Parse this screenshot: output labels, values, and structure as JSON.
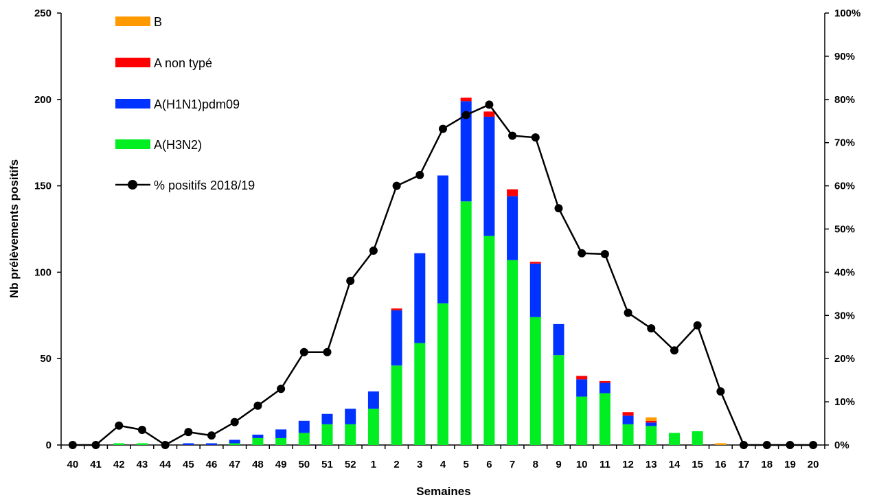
{
  "chart_data": {
    "type": "bar",
    "stacked": true,
    "categories": [
      "40",
      "41",
      "42",
      "43",
      "44",
      "45",
      "46",
      "47",
      "48",
      "49",
      "50",
      "51",
      "52",
      "1",
      "2",
      "3",
      "4",
      "5",
      "6",
      "7",
      "8",
      "9",
      "10",
      "11",
      "12",
      "13",
      "14",
      "15",
      "16",
      "17",
      "18",
      "19",
      "20"
    ],
    "xlabel": "Semaines",
    "ylabel": "Nb prélèvements positifs",
    "ylim": [
      0,
      250
    ],
    "yticks": [
      "0",
      "50",
      "100",
      "150",
      "200",
      "250"
    ],
    "y2lim": [
      0,
      100
    ],
    "y2ticks": [
      "0%",
      "10%",
      "20%",
      "30%",
      "40%",
      "50%",
      "60%",
      "70%",
      "80%",
      "90%",
      "100%"
    ],
    "grid": false,
    "legend_position": "top-left",
    "series": [
      {
        "name": "A(H3N2)",
        "color": "#00ee22",
        "values": [
          0,
          0,
          1,
          1,
          0,
          0,
          0,
          1,
          4,
          4,
          7,
          12,
          12,
          21,
          46,
          59,
          82,
          141,
          121,
          107,
          74,
          52,
          28,
          30,
          12,
          11,
          7,
          8,
          0,
          0,
          0,
          0,
          0
        ]
      },
      {
        "name": "A(H1N1)pdm09",
        "color": "#0033ff",
        "values": [
          0,
          0,
          0,
          0,
          0,
          1,
          1,
          2,
          2,
          5,
          7,
          6,
          9,
          10,
          32,
          52,
          74,
          58,
          69,
          37,
          31,
          18,
          10,
          6,
          5,
          2,
          0,
          0,
          0,
          0,
          0,
          0,
          0
        ]
      },
      {
        "name": "A non typé",
        "color": "#ff0000",
        "values": [
          0,
          0,
          0,
          0,
          0,
          0,
          0,
          0,
          0,
          0,
          0,
          0,
          0,
          0,
          1,
          0,
          0,
          2,
          3,
          4,
          1,
          0,
          2,
          1,
          2,
          1,
          0,
          0,
          0,
          0,
          0,
          0,
          0
        ]
      },
      {
        "name": "B",
        "color": "#ff9900",
        "values": [
          0,
          0,
          0,
          0,
          0,
          0,
          0,
          0,
          0,
          0,
          0,
          0,
          0,
          0,
          0,
          0,
          0,
          0,
          0,
          0,
          0,
          0,
          0,
          0,
          0,
          2,
          0,
          0,
          1,
          0,
          0,
          0,
          0
        ]
      }
    ],
    "line": {
      "name": "% positifs 2018/19",
      "color": "#000000",
      "values": [
        0,
        0,
        4.5,
        3.5,
        0,
        3,
        2.2,
        5.3,
        9.1,
        13,
        21.5,
        21.5,
        38,
        45,
        60,
        62.5,
        73.2,
        76.4,
        78.8,
        71.6,
        71.2,
        54.8,
        44.4,
        44.2,
        30.6,
        27,
        21.9,
        27.7,
        12.4,
        0,
        0,
        0,
        0
      ]
    }
  }
}
